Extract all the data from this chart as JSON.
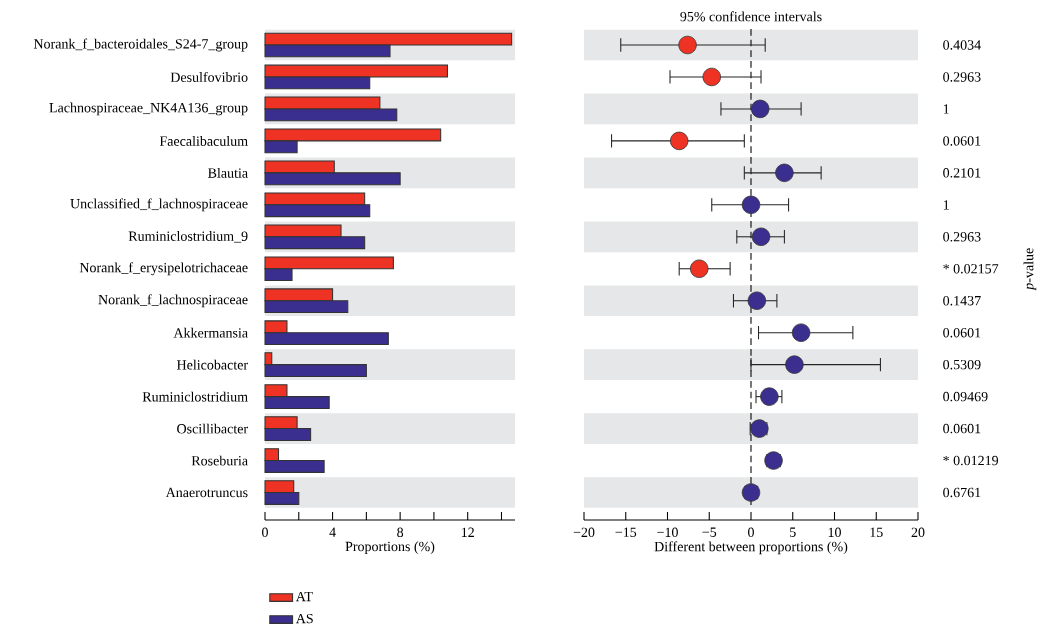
{
  "chart_data": [
    {
      "type": "bar",
      "orientation": "horizontal",
      "xlabel": "Proportions (%)",
      "categories": [
        "Norank_f_bacteroidales_S24-7_group",
        "Desulfovibrio",
        "Lachnospiraceae_NK4A136_group",
        "Faecalibaculum",
        "Blautia",
        "Unclassified_f_lachnospiraceae",
        "Ruminiclostridium_9",
        "Norank_f_erysipelotrichaceae",
        "Norank_f_lachnospiraceae",
        "Akkermansia",
        "Helicobacter",
        "Ruminiclostridium",
        "Oscillibacter",
        "Roseburia",
        "Anaerotruncus"
      ],
      "series": [
        {
          "name": "AT",
          "color": "#ee3224",
          "values": [
            14.6,
            10.8,
            6.8,
            10.4,
            4.1,
            5.9,
            4.5,
            7.6,
            4.0,
            1.3,
            0.4,
            1.3,
            1.9,
            0.8,
            1.7
          ]
        },
        {
          "name": "AS",
          "color": "#3a2f8f",
          "values": [
            7.4,
            6.2,
            7.8,
            1.9,
            8.0,
            6.2,
            5.9,
            1.6,
            4.9,
            7.3,
            6.0,
            3.8,
            2.7,
            3.5,
            2.0
          ]
        }
      ],
      "xlim": [
        0,
        14.8
      ],
      "xticks": [
        0,
        {
          "value": 2,
          "label": null
        },
        4,
        {
          "value": 6,
          "label": null
        },
        8,
        {
          "value": 10,
          "label": null
        },
        12,
        {
          "value": 14,
          "label": null
        }
      ],
      "legend": "bottom",
      "bands": [
        {
          "axis": "y",
          "from": "Norank_f_bacteroidales_S24-7_group",
          "to": "Norank_f_bacteroidales_S24-7_group",
          "color": "#e6e7e8"
        },
        {
          "axis": "y",
          "from": "Lachnospiraceae_NK4A136_group",
          "to": "Lachnospiraceae_NK4A136_group",
          "color": "#e6e7e8"
        },
        {
          "axis": "y",
          "from": "Blautia",
          "to": "Blautia",
          "color": "#e6e7e8"
        },
        {
          "axis": "y",
          "from": "Ruminiclostridium_9",
          "to": "Ruminiclostridium_9",
          "color": "#e6e7e8"
        },
        {
          "axis": "y",
          "from": "Norank_f_lachnospiraceae",
          "to": "Norank_f_lachnospiraceae",
          "color": "#e6e7e8"
        },
        {
          "axis": "y",
          "from": "Helicobacter",
          "to": "Helicobacter",
          "color": "#e6e7e8"
        },
        {
          "axis": "y",
          "from": "Oscillibacter",
          "to": "Oscillibacter",
          "color": "#e6e7e8"
        },
        {
          "axis": "y",
          "from": "Anaerotruncus",
          "to": "Anaerotruncus",
          "color": "#e6e7e8"
        }
      ]
    },
    {
      "type": "scatter",
      "orientation": "horizontal",
      "title": "95% confidence intervals",
      "xlabel": "Different between proportions (%)",
      "y2label": "*p*-value",
      "categories": [
        "Norank_f_bacteroidales_S24-7_group",
        "Desulfovibrio",
        "Lachnospiraceae_NK4A136_group",
        "Faecalibaculum",
        "Blautia",
        "Unclassified_f_lachnospiraceae",
        "Ruminiclostridium_9",
        "Norank_f_erysipelotrichaceae",
        "Norank_f_lachnospiraceae",
        "Akkermansia",
        "Helicobacter",
        "Ruminiclostridium",
        "Oscillibacter",
        "Roseburia",
        "Anaerotruncus"
      ],
      "tick_labels": "x",
      "values": [
        -7.6,
        -4.7,
        1.1,
        -8.6,
        4.0,
        0.0,
        1.2,
        -6.2,
        0.7,
        6.0,
        5.2,
        2.2,
        1.0,
        2.7,
        0.0
      ],
      "colors": [
        "#ee3224",
        "#ee3224",
        "#3a2f8f",
        "#ee3224",
        "#3a2f8f",
        "#3a2f8f",
        "#3a2f8f",
        "#ee3224",
        "#3a2f8f",
        "#3a2f8f",
        "#3a2f8f",
        "#3a2f8f",
        "#3a2f8f",
        "#3a2f8f",
        "#3a2f8f"
      ],
      "errors": [
        [
          -15.6,
          1.7
        ],
        [
          -9.7,
          1.2
        ],
        [
          -3.6,
          6.0
        ],
        [
          -16.7,
          -0.8
        ],
        [
          -0.8,
          8.4
        ],
        [
          -4.7,
          4.5
        ],
        [
          -1.7,
          4.0
        ],
        [
          -8.6,
          -2.5
        ],
        [
          -2.1,
          3.1
        ],
        [
          0.9,
          12.2
        ],
        [
          0.0,
          15.5
        ],
        [
          0.6,
          3.7
        ],
        [
          -0.1,
          1.9
        ],
        [
          1.9,
          3.5
        ],
        [
          -0.7,
          0.8
        ]
      ],
      "xlim": [
        -20,
        20
      ],
      "xticks": [
        {
          "value": -20,
          "label": "−20"
        },
        {
          "value": -15,
          "label": "−15"
        },
        {
          "value": -10,
          "label": "−10"
        },
        {
          "value": -5,
          "label": "−5"
        },
        0,
        5,
        10,
        15,
        20
      ],
      "ref_lines": [
        {
          "axis": "x",
          "value": 0,
          "line_style": "dashed"
        }
      ],
      "bands": [
        {
          "axis": "y",
          "from": "Norank_f_bacteroidales_S24-7_group",
          "to": "Norank_f_bacteroidales_S24-7_group",
          "color": "#e6e7e8"
        },
        {
          "axis": "y",
          "from": "Lachnospiraceae_NK4A136_group",
          "to": "Lachnospiraceae_NK4A136_group",
          "color": "#e6e7e8"
        },
        {
          "axis": "y",
          "from": "Blautia",
          "to": "Blautia",
          "color": "#e6e7e8"
        },
        {
          "axis": "y",
          "from": "Ruminiclostridium_9",
          "to": "Ruminiclostridium_9",
          "color": "#e6e7e8"
        },
        {
          "axis": "y",
          "from": "Norank_f_lachnospiraceae",
          "to": "Norank_f_lachnospiraceae",
          "color": "#e6e7e8"
        },
        {
          "axis": "y",
          "from": "Helicobacter",
          "to": "Helicobacter",
          "color": "#e6e7e8"
        },
        {
          "axis": "y",
          "from": "Oscillibacter",
          "to": "Oscillibacter",
          "color": "#e6e7e8"
        },
        {
          "axis": "y",
          "from": "Anaerotruncus",
          "to": "Anaerotruncus",
          "color": "#e6e7e8"
        }
      ],
      "annotations": [
        "0.4034",
        "0.2963",
        "1",
        "0.0601",
        "0.2101",
        "1",
        "0.2963",
        "* 0.02157",
        "0.1437",
        "0.0601",
        "0.5309",
        "0.09469",
        "0.0601",
        "* 0.01219",
        "0.6761"
      ]
    }
  ]
}
